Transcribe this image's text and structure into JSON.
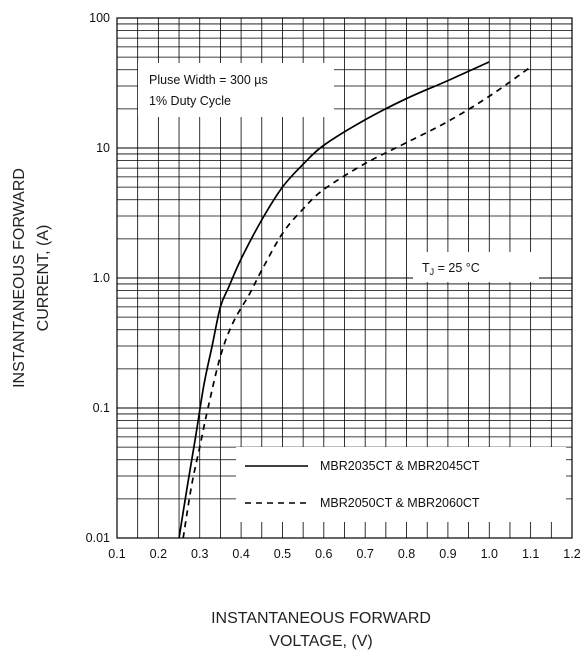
{
  "chart_data": {
    "type": "line",
    "title": "",
    "x_axis": {
      "label_lines": [
        "INSTANTANEOUS FORWARD",
        "VOLTAGE, (V)"
      ],
      "range": [
        0.1,
        1.2
      ],
      "scale": "linear",
      "ticks": [
        "0.1",
        "0.2",
        "0.3",
        "0.4",
        "0.5",
        "0.6",
        "0.7",
        "0.8",
        "0.9",
        "1.0",
        "1.1",
        "1.2"
      ]
    },
    "y_axis": {
      "label_lines": [
        "INSTANTANEOUS FORWARD",
        "CURRENT, (A)"
      ],
      "range": [
        0.01,
        100
      ],
      "scale": "log",
      "ticks": [
        "0.01",
        "0.1",
        "1.0",
        "10",
        "100"
      ]
    },
    "grid": true,
    "annotations": {
      "pulse_line1": "Pluse Width = 300 µs",
      "pulse_line2": "1% Duty Cycle",
      "temp_prefix": "T",
      "temp_sub": "J",
      "temp_suffix": " = 25 °C"
    },
    "legend": {
      "placement": "bottom-right"
    },
    "series": [
      {
        "name": "MBR2035CT & MBR2045CT",
        "style": "solid",
        "color": "#000000",
        "points": [
          [
            0.25,
            0.01
          ],
          [
            0.27,
            0.025
          ],
          [
            0.29,
            0.06
          ],
          [
            0.31,
            0.15
          ],
          [
            0.33,
            0.3
          ],
          [
            0.35,
            0.6
          ],
          [
            0.37,
            0.85
          ],
          [
            0.4,
            1.4
          ],
          [
            0.45,
            2.8
          ],
          [
            0.5,
            5.0
          ],
          [
            0.55,
            7.5
          ],
          [
            0.6,
            10.5
          ],
          [
            0.7,
            16.5
          ],
          [
            0.8,
            24
          ],
          [
            0.9,
            33
          ],
          [
            1.0,
            46
          ]
        ]
      },
      {
        "name": "MBR2050CT & MBR2060CT",
        "style": "dashed",
        "color": "#000000",
        "points": [
          [
            0.26,
            0.01
          ],
          [
            0.28,
            0.025
          ],
          [
            0.3,
            0.05
          ],
          [
            0.32,
            0.1
          ],
          [
            0.35,
            0.25
          ],
          [
            0.38,
            0.45
          ],
          [
            0.42,
            0.75
          ],
          [
            0.45,
            1.15
          ],
          [
            0.5,
            2.2
          ],
          [
            0.55,
            3.4
          ],
          [
            0.6,
            4.8
          ],
          [
            0.7,
            7.6
          ],
          [
            0.8,
            11
          ],
          [
            0.9,
            16
          ],
          [
            1.0,
            25
          ],
          [
            1.1,
            42
          ]
        ]
      }
    ]
  }
}
